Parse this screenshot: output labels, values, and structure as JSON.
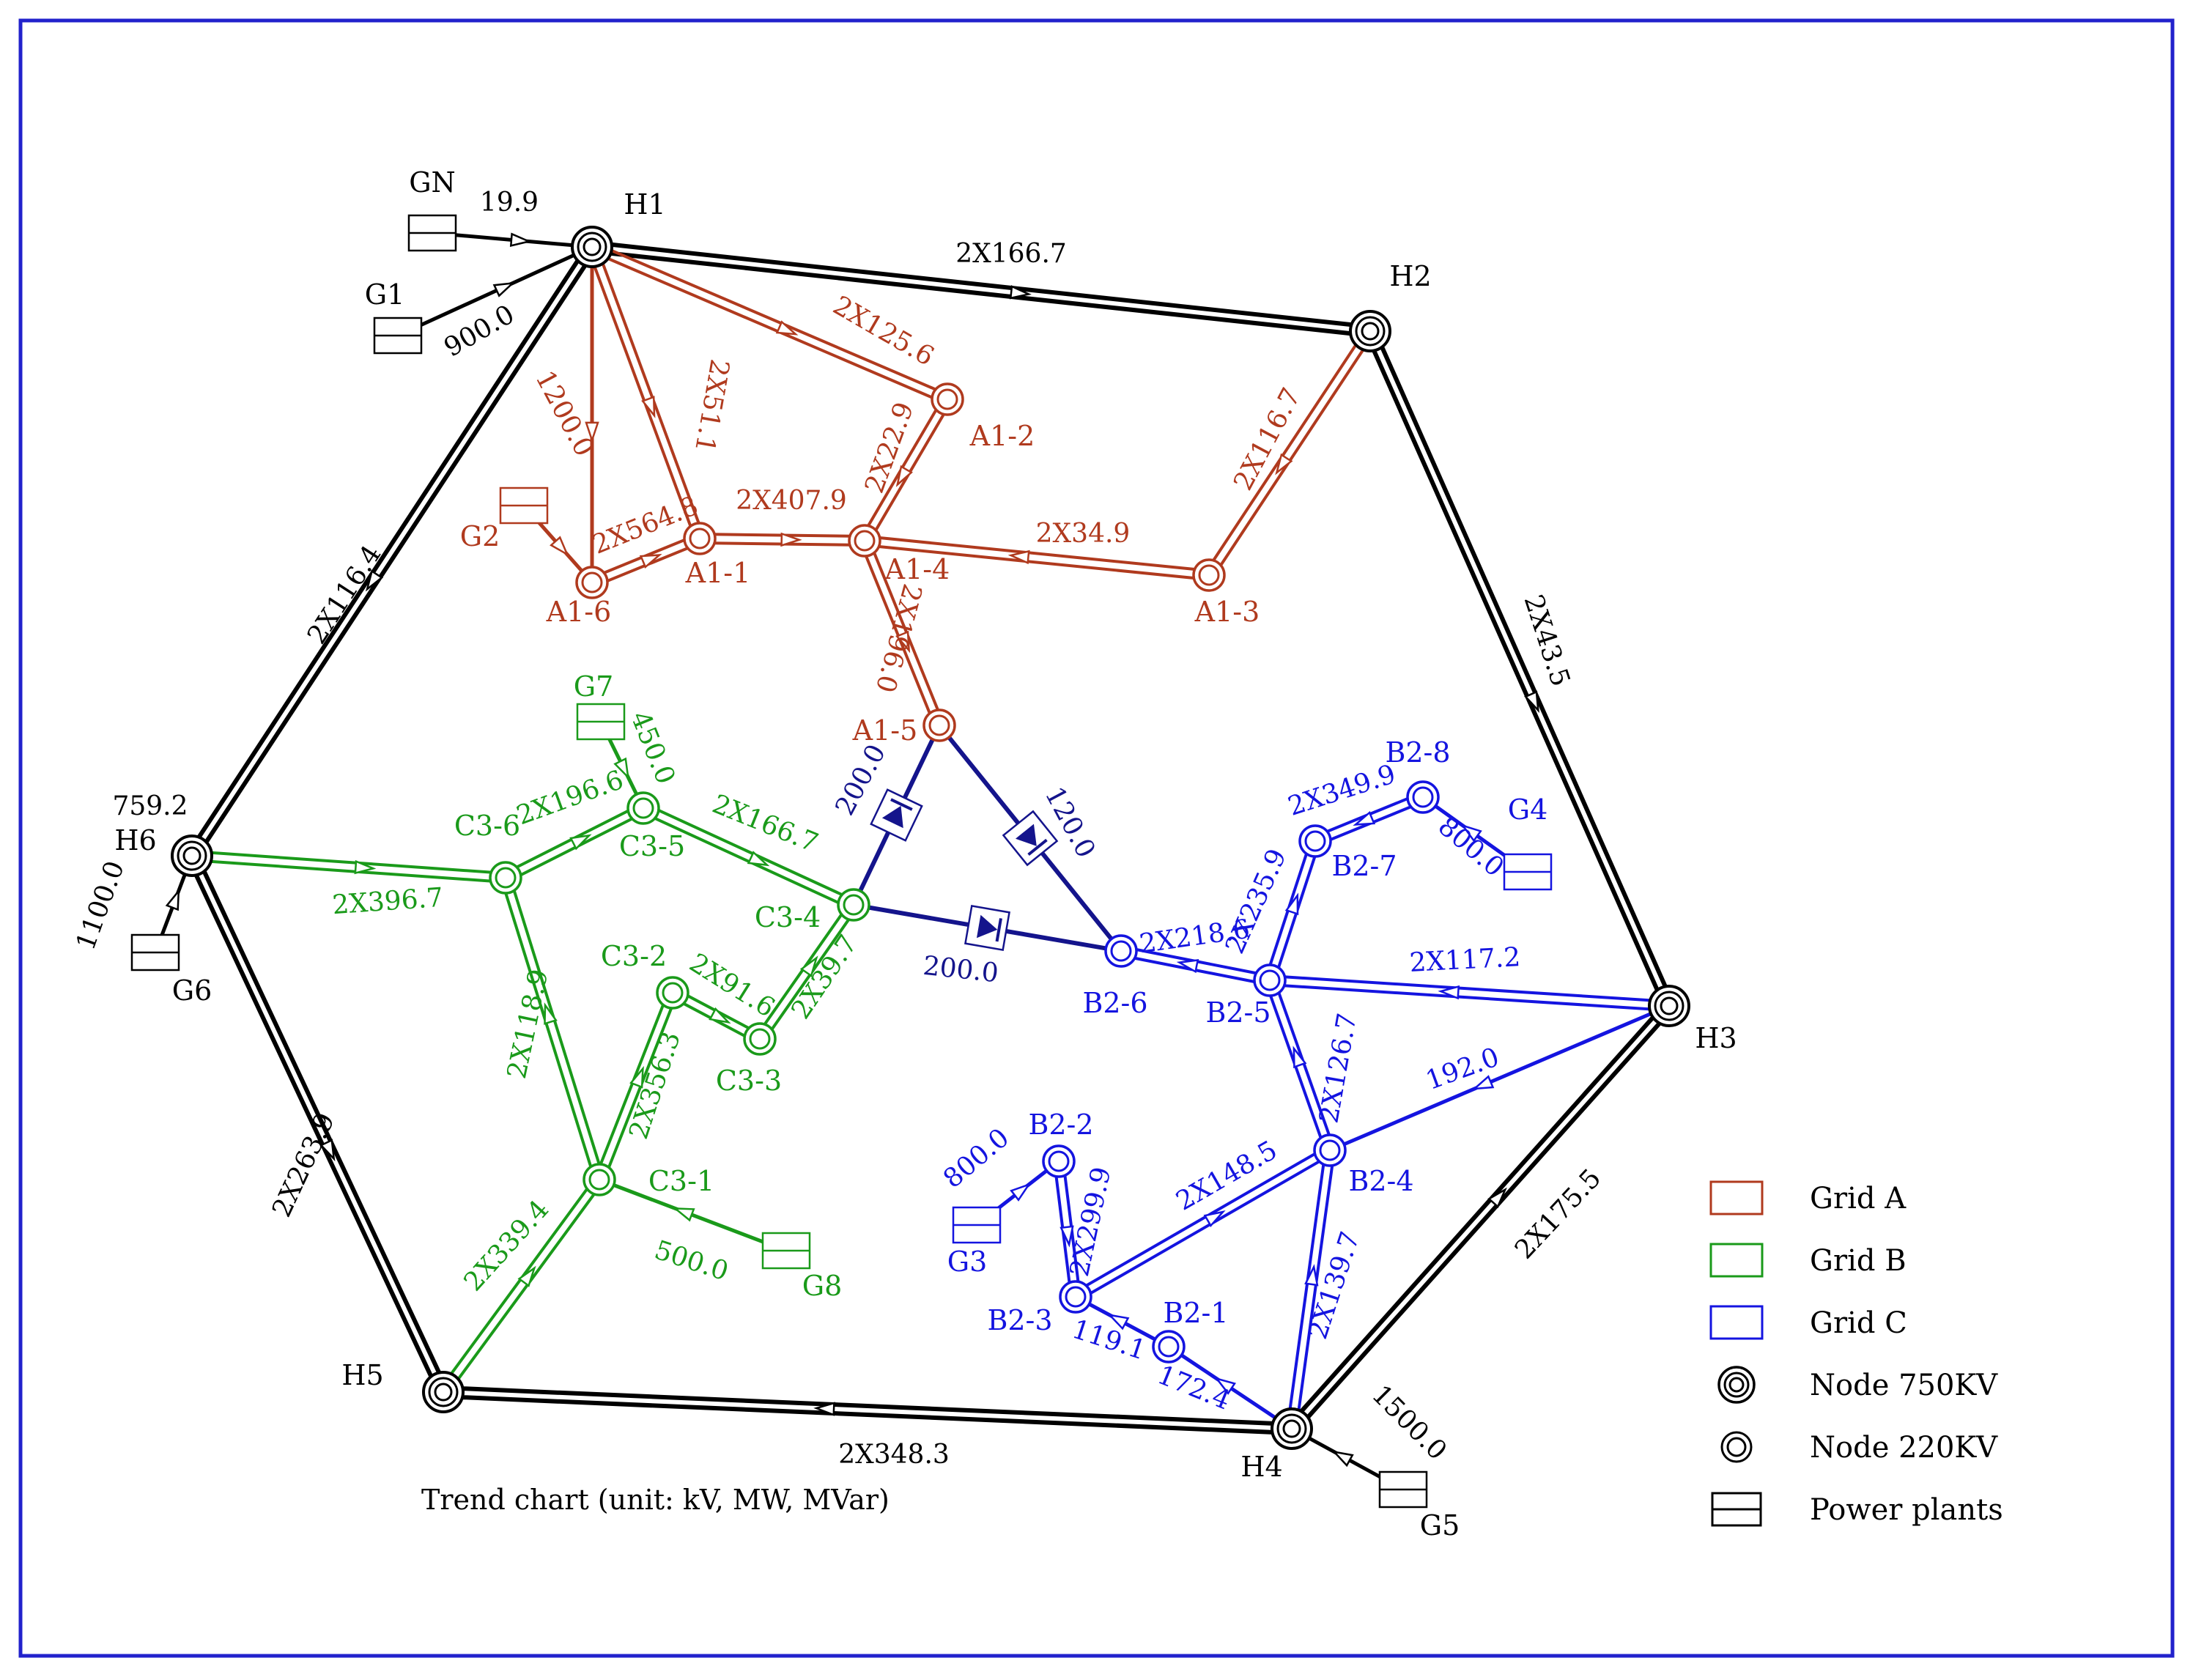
{
  "colors": {
    "black": "#000000",
    "grid_a": "#b03a1e",
    "grid_b": "#1a9a1a",
    "grid_c": "#1414e0",
    "dc": "#14148c",
    "frame": "#2222cc"
  },
  "caption": "Trend chart (unit: kV, MW, MVar)",
  "legend": [
    {
      "key": "grid_a",
      "label": "Grid A",
      "kind": "box"
    },
    {
      "key": "grid_b",
      "label": "Grid B",
      "kind": "box"
    },
    {
      "key": "grid_c",
      "label": "Grid C",
      "kind": "box"
    },
    {
      "key": "n750",
      "label": "Node 750KV",
      "kind": "node750"
    },
    {
      "key": "n220",
      "label": "Node 220KV",
      "kind": "node220"
    },
    {
      "key": "plant",
      "label": "Power plants",
      "kind": "plant"
    }
  ],
  "nodes": [
    {
      "id": "H1",
      "label": "H1",
      "type": "750",
      "grid": "black"
    },
    {
      "id": "H2",
      "label": "H2",
      "type": "750",
      "grid": "black"
    },
    {
      "id": "H3",
      "label": "H3",
      "type": "750",
      "grid": "black"
    },
    {
      "id": "H4",
      "label": "H4",
      "type": "750",
      "grid": "black"
    },
    {
      "id": "H5",
      "label": "H5",
      "type": "750",
      "grid": "black"
    },
    {
      "id": "H6",
      "label": "H6",
      "type": "750",
      "grid": "black",
      "extra": "759.2"
    },
    {
      "id": "A1-1",
      "label": "A1-1",
      "type": "220",
      "grid": "grid_a"
    },
    {
      "id": "A1-2",
      "label": "A1-2",
      "type": "220",
      "grid": "grid_a"
    },
    {
      "id": "A1-3",
      "label": "A1-3",
      "type": "220",
      "grid": "grid_a"
    },
    {
      "id": "A1-4",
      "label": "A1-4",
      "type": "220",
      "grid": "grid_a"
    },
    {
      "id": "A1-5",
      "label": "A1-5",
      "type": "220",
      "grid": "grid_a"
    },
    {
      "id": "A1-6",
      "label": "A1-6",
      "type": "220",
      "grid": "grid_a"
    },
    {
      "id": "C3-1",
      "label": "C3-1",
      "type": "220",
      "grid": "grid_b"
    },
    {
      "id": "C3-2",
      "label": "C3-2",
      "type": "220",
      "grid": "grid_b"
    },
    {
      "id": "C3-3",
      "label": "C3-3",
      "type": "220",
      "grid": "grid_b"
    },
    {
      "id": "C3-4",
      "label": "C3-4",
      "type": "220",
      "grid": "grid_b"
    },
    {
      "id": "C3-5",
      "label": "C3-5",
      "type": "220",
      "grid": "grid_b"
    },
    {
      "id": "C3-6",
      "label": "C3-6",
      "type": "220",
      "grid": "grid_b"
    },
    {
      "id": "B2-1",
      "label": "B2-1",
      "type": "220",
      "grid": "grid_c"
    },
    {
      "id": "B2-2",
      "label": "B2-2",
      "type": "220",
      "grid": "grid_c"
    },
    {
      "id": "B2-3",
      "label": "B2-3",
      "type": "220",
      "grid": "grid_c"
    },
    {
      "id": "B2-4",
      "label": "B2-4",
      "type": "220",
      "grid": "grid_c"
    },
    {
      "id": "B2-5",
      "label": "B2-5",
      "type": "220",
      "grid": "grid_c"
    },
    {
      "id": "B2-6",
      "label": "B2-6",
      "type": "220",
      "grid": "grid_c"
    },
    {
      "id": "B2-7",
      "label": "B2-7",
      "type": "220",
      "grid": "grid_c"
    },
    {
      "id": "B2-8",
      "label": "B2-8",
      "type": "220",
      "grid": "grid_c"
    }
  ],
  "plants": [
    {
      "id": "GN",
      "label": "GN",
      "grid": "black"
    },
    {
      "id": "G1",
      "label": "G1",
      "grid": "black"
    },
    {
      "id": "G2",
      "label": "G2",
      "grid": "grid_a"
    },
    {
      "id": "G3",
      "label": "G3",
      "grid": "grid_c"
    },
    {
      "id": "G4",
      "label": "G4",
      "grid": "grid_c"
    },
    {
      "id": "G5",
      "label": "G5",
      "grid": "black"
    },
    {
      "id": "G6",
      "label": "G6",
      "grid": "black"
    },
    {
      "id": "G7",
      "label": "G7",
      "grid": "grid_b"
    },
    {
      "id": "G8",
      "label": "G8",
      "grid": "grid_b"
    }
  ],
  "lines": [
    {
      "id": "L1",
      "from": "H1",
      "to": "H2",
      "grid": "black",
      "double": true,
      "flow": "2X166.7"
    },
    {
      "id": "L2",
      "from": "H2",
      "to": "H3",
      "grid": "black",
      "double": true,
      "flow": "2X43.5"
    },
    {
      "id": "L3",
      "from": "H4",
      "to": "H3",
      "grid": "black",
      "double": true,
      "flow": "2X175.5"
    },
    {
      "id": "L4",
      "from": "H4",
      "to": "H5",
      "grid": "black",
      "double": true,
      "flow": "2X348.3"
    },
    {
      "id": "L5",
      "from": "H6",
      "to": "H5",
      "grid": "black",
      "double": true,
      "flow": "2X263.9"
    },
    {
      "id": "L6",
      "from": "H1",
      "to": "H6",
      "grid": "black",
      "double": true,
      "flow": "2X116.4"
    },
    {
      "id": "L7",
      "from": "GN",
      "to": "H1",
      "grid": "black",
      "double": false,
      "flow": "19.9"
    },
    {
      "id": "L8",
      "from": "G1",
      "to": "H1",
      "grid": "black",
      "double": false,
      "flow": "900.0"
    },
    {
      "id": "L9",
      "from": "G6",
      "to": "H6",
      "grid": "black",
      "double": false,
      "flow": "1100.0"
    },
    {
      "id": "L10",
      "from": "G5",
      "to": "H4",
      "grid": "black",
      "double": false,
      "flow": "1500.0"
    },
    {
      "id": "L11",
      "from": "H1",
      "to": "A1-2",
      "grid": "grid_a",
      "double": true,
      "flow": "2X125.6"
    },
    {
      "id": "L12",
      "from": "H1",
      "to": "A1-1",
      "grid": "grid_a",
      "double": true,
      "flow": "2X51.1"
    },
    {
      "id": "L13",
      "from": "H1",
      "to": "A1-6",
      "grid": "grid_a",
      "double": false,
      "flow": "1200.0"
    },
    {
      "id": "L14",
      "from": "A1-1",
      "to": "A1-4",
      "grid": "grid_a",
      "double": true,
      "flow": "2X407.9"
    },
    {
      "id": "L15",
      "from": "A1-6",
      "to": "A1-1",
      "grid": "grid_a",
      "double": true,
      "flow": "2X564.8"
    },
    {
      "id": "L16",
      "from": "A1-2",
      "to": "A1-4",
      "grid": "grid_a",
      "double": true,
      "flow": "2X22.9"
    },
    {
      "id": "L17",
      "from": "A1-3",
      "to": "A1-4",
      "grid": "grid_a",
      "double": true,
      "flow": "2X34.9"
    },
    {
      "id": "L18",
      "from": "H2",
      "to": "A1-3",
      "grid": "grid_a",
      "double": true,
      "flow": "2X116.7"
    },
    {
      "id": "L19",
      "from": "A1-4",
      "to": "A1-5",
      "grid": "grid_a",
      "double": true,
      "flow": "2X196.0"
    },
    {
      "id": "L20",
      "from": "G2",
      "to": "A1-6",
      "grid": "grid_a",
      "double": false,
      "flow": ""
    },
    {
      "id": "L21",
      "from": "H6",
      "to": "C3-6",
      "grid": "grid_b",
      "double": true,
      "flow": "2X396.7"
    },
    {
      "id": "L22",
      "from": "C3-6",
      "to": "C3-5",
      "grid": "grid_b",
      "double": true,
      "flow": "2X196.6"
    },
    {
      "id": "L23",
      "from": "C3-5",
      "to": "C3-4",
      "grid": "grid_b",
      "double": true,
      "flow": "2X166.7"
    },
    {
      "id": "L24",
      "from": "G7",
      "to": "C3-5",
      "grid": "grid_b",
      "double": false,
      "flow": "450.0"
    },
    {
      "id": "L25",
      "from": "C3-1",
      "to": "C3-6",
      "grid": "grid_b",
      "double": true,
      "flow": "2X118.9"
    },
    {
      "id": "L26",
      "from": "C3-1",
      "to": "C3-2",
      "grid": "grid_b",
      "double": true,
      "flow": "2X356.3"
    },
    {
      "id": "L27",
      "from": "C3-2",
      "to": "C3-3",
      "grid": "grid_b",
      "double": true,
      "flow": "2X91.6"
    },
    {
      "id": "L28",
      "from": "C3-3",
      "to": "C3-4",
      "grid": "grid_b",
      "double": true,
      "flow": "2X39.7"
    },
    {
      "id": "L29",
      "from": "H5",
      "to": "C3-1",
      "grid": "grid_b",
      "double": true,
      "flow": "2X339.4"
    },
    {
      "id": "L30",
      "from": "G8",
      "to": "C3-1",
      "grid": "grid_b",
      "double": false,
      "flow": "500.0"
    },
    {
      "id": "L31",
      "from": "C3-4",
      "to": "A1-5",
      "grid": "dc",
      "double": false,
      "flow": "200.0",
      "dc": true
    },
    {
      "id": "L32",
      "from": "A1-5",
      "to": "B2-6",
      "grid": "dc",
      "double": false,
      "flow": "120.0",
      "dc": true
    },
    {
      "id": "L33",
      "from": "C3-4",
      "to": "B2-6",
      "grid": "dc",
      "double": false,
      "flow": "200.0",
      "dc": true
    },
    {
      "id": "L34",
      "from": "B2-5",
      "to": "B2-6",
      "grid": "grid_c",
      "double": true,
      "flow": "2X218.6"
    },
    {
      "id": "L35",
      "from": "H3",
      "to": "B2-5",
      "grid": "grid_c",
      "double": true,
      "flow": "2X117.2"
    },
    {
      "id": "L36",
      "from": "B2-5",
      "to": "B2-7",
      "grid": "grid_c",
      "double": true,
      "flow": "2X235.9"
    },
    {
      "id": "L37",
      "from": "B2-8",
      "to": "B2-7",
      "grid": "grid_c",
      "double": true,
      "flow": "2X349.9"
    },
    {
      "id": "L38",
      "from": "G4",
      "to": "B2-8",
      "grid": "grid_c",
      "double": false,
      "flow": "800.0"
    },
    {
      "id": "L39",
      "from": "B2-4",
      "to": "B2-5",
      "grid": "grid_c",
      "double": true,
      "flow": "2X126.7"
    },
    {
      "id": "L40",
      "from": "H3",
      "to": "B2-4",
      "grid": "grid_c",
      "double": false,
      "flow": "192.0"
    },
    {
      "id": "L41",
      "from": "B2-3",
      "to": "B2-4",
      "grid": "grid_c",
      "double": true,
      "flow": "2X148.5"
    },
    {
      "id": "L42",
      "from": "H4",
      "to": "B2-4",
      "grid": "grid_c",
      "double": true,
      "flow": "2X139.7"
    },
    {
      "id": "L43",
      "from": "B2-2",
      "to": "B2-3",
      "grid": "grid_c",
      "double": true,
      "flow": "2X299.9"
    },
    {
      "id": "L44",
      "from": "G3",
      "to": "B2-2",
      "grid": "grid_c",
      "double": false,
      "flow": "800.0"
    },
    {
      "id": "L45",
      "from": "B2-1",
      "to": "B2-3",
      "grid": "grid_c",
      "double": false,
      "flow": "119.1"
    },
    {
      "id": "L46",
      "from": "H4",
      "to": "B2-1",
      "grid": "grid_c",
      "double": false,
      "flow": "172.4"
    }
  ]
}
